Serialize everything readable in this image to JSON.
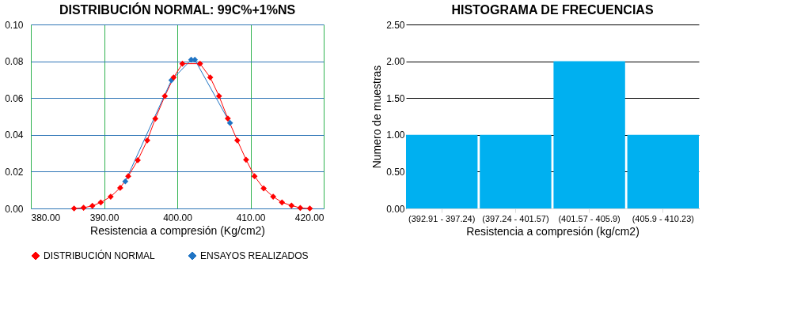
{
  "chart_data": [
    {
      "type": "line",
      "title": "DISTRIBUCIÓN NORMAL: 99C%+1%NS",
      "xlabel": "Resistencia a compresión (Kg/cm2)",
      "xlim": [
        380,
        420
      ],
      "xticks": [
        {
          "value": 380,
          "label": "380.00"
        },
        {
          "value": 390,
          "label": "390.00"
        },
        {
          "value": 400,
          "label": "400.00"
        },
        {
          "value": 410,
          "label": "410.00"
        },
        {
          "value": 420,
          "label": "420.00"
        }
      ],
      "ylim": [
        0,
        0.1
      ],
      "yticks": [
        {
          "value": 0,
          "label": "0.00"
        },
        {
          "value": 0.02,
          "label": "0.02"
        },
        {
          "value": 0.04,
          "label": "0.04"
        },
        {
          "value": 0.06,
          "label": "0.06"
        },
        {
          "value": 0.08,
          "label": "0.08"
        },
        {
          "value": 0.1,
          "label": "0.10"
        }
      ],
      "grid": true,
      "legend": "bottom",
      "marker": "diamond",
      "line_style": "solid",
      "series": [
        {
          "name": "DISTRIBUCIÓN NORMAL",
          "color": "#ff0000",
          "x": [
            385.9,
            387.2,
            388.4,
            389.55,
            390.9,
            392.2,
            393.3,
            394.6,
            395.9,
            397.0,
            398.3,
            399.5,
            400.7,
            403.1,
            404.5,
            405.7,
            406.9,
            408.2,
            409.4,
            410.55,
            411.8,
            413.1,
            414.3,
            415.6,
            416.8,
            418.1
          ],
          "values": [
            0.0,
            0.0004,
            0.0014,
            0.0033,
            0.0064,
            0.0112,
            0.0175,
            0.0262,
            0.037,
            0.0488,
            0.0611,
            0.0712,
            0.0787,
            0.0787,
            0.0712,
            0.0611,
            0.0489,
            0.037,
            0.0265,
            0.0175,
            0.0109,
            0.0064,
            0.0033,
            0.0016,
            0.0003,
            0.0
          ]
        },
        {
          "name": "ENSAYOS REALIZADOS",
          "color": "#1f74c4",
          "x": [
            392.9,
            399.2,
            401.9,
            402.4,
            407.2
          ],
          "values": [
            0.0147,
            0.0697,
            0.0808,
            0.0808,
            0.0465
          ]
        }
      ]
    },
    {
      "type": "bar",
      "title": "HISTOGRAMA DE FRECUENCIAS",
      "xlabel": "Resistencia a compresión (kg/cm2)",
      "ylabel": "Numero de muestras",
      "categories": [
        "(392.91 - 397.24)",
        "(397.24 - 401.57)",
        "(401.57 - 405.9)",
        "(405.9 - 410.23)"
      ],
      "values": [
        1,
        1,
        2,
        1
      ],
      "color": "#00b0f0",
      "ylim": [
        0,
        2.5
      ],
      "yticks": [
        {
          "value": 0,
          "label": "0.00"
        },
        {
          "value": 0.5,
          "label": "0.50"
        },
        {
          "value": 1,
          "label": "1.00"
        },
        {
          "value": 1.5,
          "label": "1.50"
        },
        {
          "value": 2,
          "label": "2.00"
        },
        {
          "value": 2.5,
          "label": "2.50"
        }
      ],
      "grid": true
    }
  ]
}
